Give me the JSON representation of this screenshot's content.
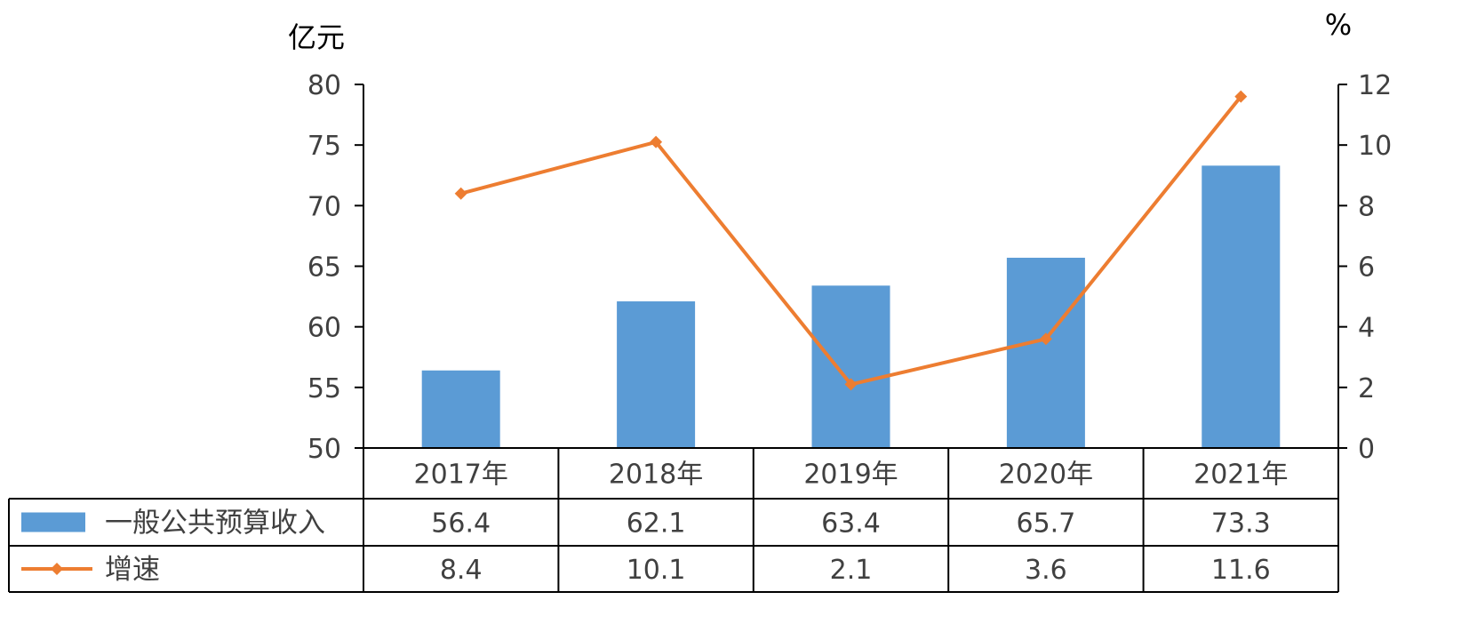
{
  "chart_data": {
    "type": "bar",
    "categories": [
      "2017年",
      "2018年",
      "2019年",
      "2020年",
      "2021年"
    ],
    "y_left_label": "亿元",
    "y_right_label": "%",
    "y_left_lim": [
      50,
      80
    ],
    "y_left_ticks": [
      "50",
      "55",
      "60",
      "65",
      "70",
      "75",
      "80"
    ],
    "y_right_lim": [
      0,
      12
    ],
    "y_right_ticks": [
      "0",
      "2",
      "4",
      "6",
      "8",
      "10",
      "12"
    ],
    "series": [
      {
        "name": "一般公共预算收入",
        "type": "bar",
        "axis": "left",
        "color": "#5b9bd5",
        "values": [
          56.4,
          62.1,
          63.4,
          65.7,
          73.3
        ],
        "labels": [
          "56.4",
          "62.1",
          "63.4",
          "65.7",
          "73.3"
        ]
      },
      {
        "name": "增速",
        "type": "line",
        "axis": "right",
        "marker": "diamond",
        "color": "#ed7d31",
        "values": [
          8.4,
          10.1,
          2.1,
          3.6,
          11.6
        ],
        "labels": [
          "8.4",
          "10.1",
          "2.1",
          "3.6",
          "11.6"
        ]
      }
    ],
    "grid": false,
    "legend": "data-table"
  }
}
